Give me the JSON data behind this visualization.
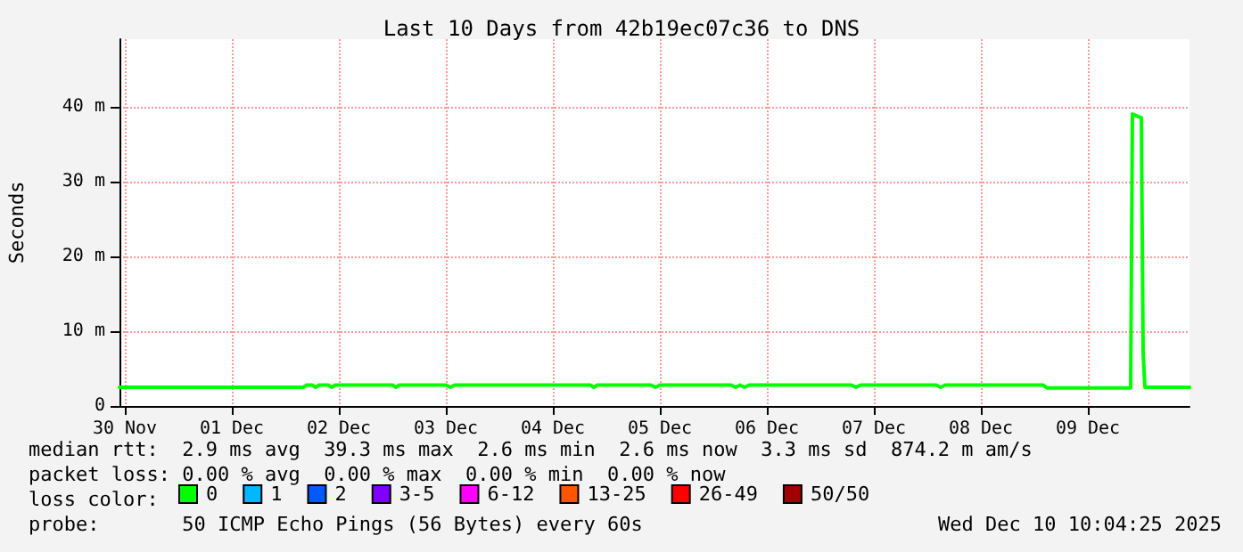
{
  "chart_data": {
    "type": "line",
    "title": "Last 10 Days from 42b19ec07c36 to DNS",
    "ylabel": "Seconds",
    "x": [
      "2025-11-30T10:48",
      "2025-12-02T04:00",
      "2025-12-02T04:48",
      "2025-12-02T06:00",
      "2025-12-02T06:48",
      "2025-12-02T07:36",
      "2025-12-02T09:36",
      "2025-12-02T10:24",
      "2025-12-02T11:12",
      "2025-12-03T00:00",
      "2025-12-03T00:48",
      "2025-12-03T01:36",
      "2025-12-03T12:00",
      "2025-12-03T13:00",
      "2025-12-03T14:00",
      "2025-12-04T20:24",
      "2025-12-04T21:12",
      "2025-12-04T22:00",
      "2025-12-05T10:00",
      "2025-12-05T11:00",
      "2025-12-05T12:00",
      "2025-12-06T04:00",
      "2025-12-06T05:00",
      "2025-12-06T06:00",
      "2025-12-06T07:00",
      "2025-12-06T08:00",
      "2025-12-07T07:00",
      "2025-12-07T08:00",
      "2025-12-07T09:00",
      "2025-12-08T02:00",
      "2025-12-08T03:00",
      "2025-12-08T04:00",
      "2025-12-08T05:00",
      "2025-12-09T02:00",
      "2025-12-09T02:48",
      "2025-12-09T21:36",
      "2025-12-09T22:00",
      "2025-12-10T00:00",
      "2025-12-10T00:24",
      "2025-12-10T00:48",
      "2025-12-10T10:48"
    ],
    "series": [
      {
        "name": "0",
        "color": "#00ff00",
        "values": [
          2.5,
          2.5,
          2.8,
          2.8,
          2.5,
          2.8,
          2.8,
          2.5,
          2.8,
          2.8,
          2.5,
          2.8,
          2.8,
          2.5,
          2.8,
          2.8,
          2.5,
          2.8,
          2.8,
          2.5,
          2.8,
          2.8,
          2.5,
          2.8,
          2.5,
          2.8,
          2.8,
          2.5,
          2.8,
          2.8,
          2.5,
          2.8,
          2.8,
          2.8,
          2.4,
          2.4,
          39,
          38.5,
          7,
          2.5,
          2.5
        ]
      },
      {
        "name": "1",
        "color": "#00b8ff",
        "values": [
          null,
          null,
          null,
          null,
          null,
          null,
          null,
          null,
          null,
          null,
          null,
          null,
          null,
          null,
          null,
          null,
          null,
          null,
          null,
          null,
          null,
          null,
          null,
          null,
          null,
          null,
          null,
          null,
          null,
          null,
          null,
          null,
          null,
          null,
          null,
          null,
          null,
          null,
          null,
          null,
          null
        ]
      },
      {
        "name": "2",
        "color": "#0059ff",
        "values": [
          null,
          null,
          null,
          null,
          null,
          null,
          null,
          null,
          null,
          null,
          null,
          null,
          null,
          null,
          null,
          null,
          null,
          null,
          null,
          null,
          null,
          null,
          null,
          null,
          null,
          null,
          null,
          null,
          null,
          null,
          null,
          null,
          null,
          null,
          null,
          null,
          null,
          null,
          null,
          null,
          null
        ]
      },
      {
        "name": "3-5",
        "color": "#7e00ff",
        "values": [
          null,
          null,
          null,
          null,
          null,
          null,
          null,
          null,
          null,
          null,
          null,
          null,
          null,
          null,
          null,
          null,
          null,
          null,
          null,
          null,
          null,
          null,
          null,
          null,
          null,
          null,
          null,
          null,
          null,
          null,
          null,
          null,
          null,
          null,
          null,
          null,
          null,
          null,
          null,
          null,
          null
        ]
      },
      {
        "name": "6-12",
        "color": "#ff00ff",
        "values": [
          null,
          null,
          null,
          null,
          null,
          null,
          null,
          null,
          null,
          null,
          null,
          null,
          null,
          null,
          null,
          null,
          null,
          null,
          null,
          null,
          null,
          null,
          null,
          null,
          null,
          null,
          null,
          null,
          null,
          null,
          null,
          null,
          null,
          null,
          null,
          null,
          null,
          null,
          null,
          null,
          null
        ]
      },
      {
        "name": "13-25",
        "color": "#ff5500",
        "values": [
          null,
          null,
          null,
          null,
          null,
          null,
          null,
          null,
          null,
          null,
          null,
          null,
          null,
          null,
          null,
          null,
          null,
          null,
          null,
          null,
          null,
          null,
          null,
          null,
          null,
          null,
          null,
          null,
          null,
          null,
          null,
          null,
          null,
          null,
          null,
          null,
          null,
          null,
          null,
          null,
          null
        ]
      },
      {
        "name": "26-49",
        "color": "#ff0000",
        "values": [
          null,
          null,
          null,
          null,
          null,
          null,
          null,
          null,
          null,
          null,
          null,
          null,
          null,
          null,
          null,
          null,
          null,
          null,
          null,
          null,
          null,
          null,
          null,
          null,
          null,
          null,
          null,
          null,
          null,
          null,
          null,
          null,
          null,
          null,
          null,
          null,
          null,
          null,
          null,
          null,
          null
        ]
      },
      {
        "name": "50/50",
        "color": "#a10000",
        "values": [
          null,
          null,
          null,
          null,
          null,
          null,
          null,
          null,
          null,
          null,
          null,
          null,
          null,
          null,
          null,
          null,
          null,
          null,
          null,
          null,
          null,
          null,
          null,
          null,
          null,
          null,
          null,
          null,
          null,
          null,
          null,
          null,
          null,
          null,
          null,
          null,
          null,
          null,
          null,
          null,
          null
        ]
      }
    ],
    "legend_title": "loss color:",
    "legend": "bottom",
    "xlim": [
      "2025-11-30T10:48",
      "2025-12-10T10:48"
    ],
    "xticks": [
      {
        "value": "2025-11-30T12:00",
        "label": "30 Nov"
      },
      {
        "value": "2025-12-01T12:00",
        "label": "01 Dec"
      },
      {
        "value": "2025-12-02T12:00",
        "label": "02 Dec"
      },
      {
        "value": "2025-12-03T12:00",
        "label": "03 Dec"
      },
      {
        "value": "2025-12-04T12:00",
        "label": "04 Dec"
      },
      {
        "value": "2025-12-05T12:00",
        "label": "05 Dec"
      },
      {
        "value": "2025-12-06T12:00",
        "label": "06 Dec"
      },
      {
        "value": "2025-12-07T12:00",
        "label": "07 Dec"
      },
      {
        "value": "2025-12-08T12:00",
        "label": "08 Dec"
      },
      {
        "value": "2025-12-09T12:00",
        "label": "09 Dec"
      }
    ],
    "ylim": [
      0,
      49
    ],
    "yticks": [
      0,
      {
        "value": 10,
        "label": "10 m"
      },
      {
        "value": 20,
        "label": "20 m"
      },
      {
        "value": 30,
        "label": "30 m"
      },
      {
        "value": 40,
        "label": "40 m"
      }
    ],
    "grid": true,
    "marker": "none",
    "line_style": "solid",
    "annotations": [
      "median rtt:  2.9 ms avg  39.3 ms max  2.6 ms min  2.6 ms now  3.3 ms sd  874.2 m am/s",
      "packet loss: 0.00 % avg  0.00 % max  0.00 % min  0.00 % now",
      "probe:       50 ICMP Echo Pings (56 Bytes) every 60s",
      "Wed Dec 10 10:04:25 2025"
    ]
  }
}
